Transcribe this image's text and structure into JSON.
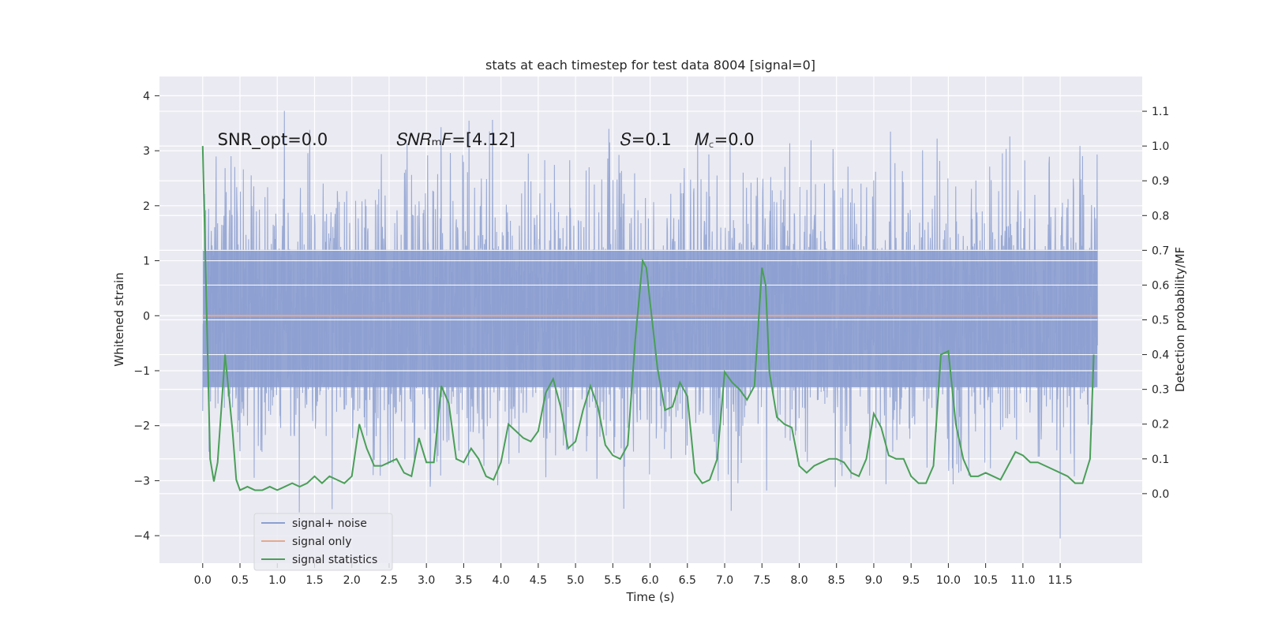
{
  "chart_data": {
    "type": "line",
    "title": "stats at each timestep for test data 8004 [signal=0]",
    "xlabel": "Time (s)",
    "ylabel_left": "Whitened strain",
    "ylabel_right": "Detection probability/MF",
    "xlim": [
      -0.58,
      12.6
    ],
    "ylim_left": [
      -4.5,
      4.35
    ],
    "ylim_right": [
      -0.2,
      1.2
    ],
    "x_ticks": [
      "0.0",
      "0.5",
      "1.0",
      "1.5",
      "2.0",
      "2.5",
      "3.0",
      "3.5",
      "4.0",
      "4.5",
      "5.0",
      "5.5",
      "6.0",
      "6.5",
      "7.0",
      "7.5",
      "8.0",
      "8.5",
      "9.0",
      "9.5",
      "10.0",
      "10.5",
      "11.0",
      "11.5"
    ],
    "y_left_ticks": [
      "−4",
      "−3",
      "−2",
      "−1",
      "0",
      "1",
      "2",
      "3",
      "4"
    ],
    "y_right_ticks": [
      "0.0",
      "0.1",
      "0.2",
      "0.3",
      "0.4",
      "0.5",
      "0.6",
      "0.7",
      "0.8",
      "0.9",
      "1.0",
      "1.1"
    ],
    "grid": true,
    "legend_position": "lower-left",
    "annotations": [
      {
        "text": "SNR_opt=0.0",
        "x": 0.2,
        "y": 3.1
      },
      {
        "text": "𝑆𝑁𝑅ₘ𝐹=[4.12]",
        "x": 2.6,
        "y": 3.1
      },
      {
        "text": "𝑆=0.1",
        "x": 5.6,
        "y": 3.1
      },
      {
        "text": "𝑀꜀=0.0",
        "x": 6.6,
        "y": 3.1
      }
    ],
    "series": [
      {
        "name": "signal+ noise",
        "axis": "left",
        "color": "#8c9fd0",
        "x_range": [
          0.0,
          12.0
        ],
        "envelope_typical": [
          -1.6,
          1.8
        ],
        "peak_range": [
          -4.05,
          3.95
        ]
      },
      {
        "name": "signal only",
        "axis": "left",
        "color": "#e5a98f",
        "x": [
          0.0,
          12.0
        ],
        "y": [
          0.0,
          0.0
        ]
      },
      {
        "name": "signal statistics",
        "axis": "right",
        "color": "#4a9f58",
        "x": [
          0.0,
          0.1,
          0.15,
          0.2,
          0.3,
          0.4,
          0.45,
          0.5,
          0.6,
          0.7,
          0.8,
          0.9,
          1.0,
          1.1,
          1.2,
          1.3,
          1.4,
          1.5,
          1.6,
          1.7,
          1.8,
          1.9,
          2.0,
          2.1,
          2.2,
          2.3,
          2.4,
          2.5,
          2.6,
          2.7,
          2.8,
          2.9,
          3.0,
          3.1,
          3.2,
          3.3,
          3.4,
          3.5,
          3.6,
          3.7,
          3.8,
          3.9,
          4.0,
          4.1,
          4.2,
          4.3,
          4.4,
          4.5,
          4.6,
          4.7,
          4.8,
          4.9,
          5.0,
          5.1,
          5.2,
          5.3,
          5.4,
          5.5,
          5.6,
          5.7,
          5.8,
          5.9,
          5.95,
          6.0,
          6.1,
          6.2,
          6.3,
          6.4,
          6.5,
          6.6,
          6.7,
          6.8,
          6.9,
          7.0,
          7.1,
          7.2,
          7.3,
          7.4,
          7.5,
          7.55,
          7.6,
          7.7,
          7.8,
          7.9,
          8.0,
          8.1,
          8.2,
          8.3,
          8.4,
          8.5,
          8.6,
          8.7,
          8.8,
          8.9,
          9.0,
          9.1,
          9.2,
          9.3,
          9.4,
          9.5,
          9.6,
          9.7,
          9.8,
          9.9,
          10.0,
          10.1,
          10.2,
          10.3,
          10.4,
          10.5,
          10.6,
          10.7,
          10.8,
          10.9,
          11.0,
          11.1,
          11.2,
          11.3,
          11.4,
          11.5,
          11.6,
          11.7,
          11.8,
          11.9,
          11.95
        ],
        "y": [
          1.0,
          0.1,
          0.035,
          0.09,
          0.4,
          0.18,
          0.04,
          0.01,
          0.02,
          0.01,
          0.01,
          0.02,
          0.01,
          0.02,
          0.03,
          0.02,
          0.03,
          0.05,
          0.03,
          0.05,
          0.04,
          0.03,
          0.05,
          0.2,
          0.13,
          0.08,
          0.08,
          0.09,
          0.1,
          0.06,
          0.05,
          0.16,
          0.09,
          0.09,
          0.31,
          0.26,
          0.1,
          0.09,
          0.13,
          0.1,
          0.05,
          0.04,
          0.09,
          0.2,
          0.18,
          0.16,
          0.15,
          0.18,
          0.29,
          0.33,
          0.25,
          0.13,
          0.15,
          0.24,
          0.31,
          0.25,
          0.14,
          0.11,
          0.1,
          0.14,
          0.44,
          0.67,
          0.65,
          0.55,
          0.36,
          0.24,
          0.25,
          0.32,
          0.28,
          0.06,
          0.03,
          0.04,
          0.1,
          0.35,
          0.32,
          0.3,
          0.27,
          0.31,
          0.65,
          0.6,
          0.35,
          0.22,
          0.2,
          0.19,
          0.08,
          0.06,
          0.08,
          0.09,
          0.1,
          0.1,
          0.09,
          0.06,
          0.05,
          0.1,
          0.23,
          0.19,
          0.11,
          0.1,
          0.1,
          0.05,
          0.03,
          0.03,
          0.08,
          0.4,
          0.41,
          0.2,
          0.1,
          0.05,
          0.05,
          0.06,
          0.05,
          0.04,
          0.08,
          0.12,
          0.11,
          0.09,
          0.09,
          0.08,
          0.07,
          0.06,
          0.05,
          0.03,
          0.03,
          0.1,
          0.4
        ]
      }
    ]
  }
}
